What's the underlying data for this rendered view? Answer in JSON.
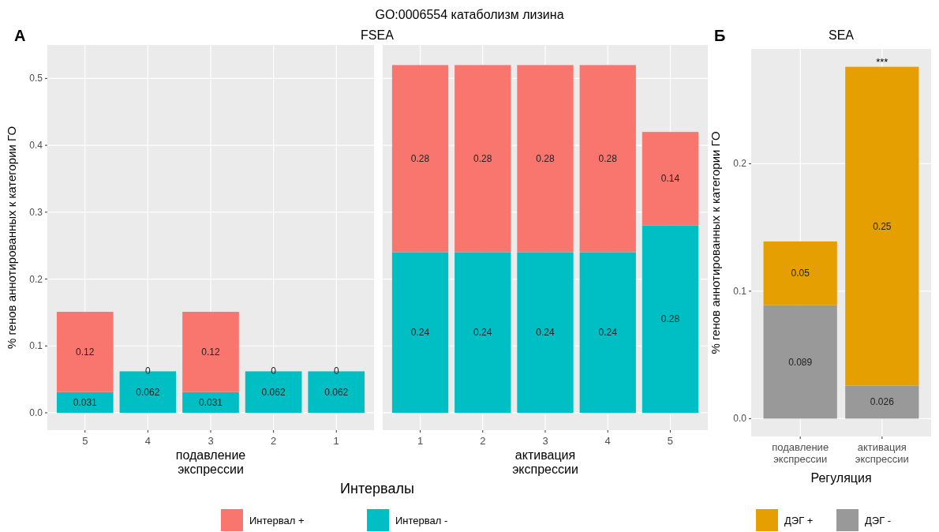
{
  "chart_data": [
    {
      "type": "bar",
      "stacked": true,
      "subtitle": "FSEA",
      "xlabel": "подавление экспрессии",
      "ylabel": "% генов аннотированных к категории ГО",
      "annotations": [
        "А",
        "Интервалы"
      ],
      "categories": [
        "5",
        "4",
        "3",
        "2",
        "1"
      ],
      "series": [
        {
          "name": "Интервал -",
          "color": "#00bfc4",
          "values": [
            0.031,
            0.062,
            0.031,
            0.062,
            0.062
          ]
        },
        {
          "name": "Интервал +",
          "color": "#f8766d",
          "values": [
            0.12,
            0,
            0.12,
            0,
            0
          ]
        }
      ],
      "ylim": [
        -0.026,
        0.55
      ],
      "yticks": [
        {
          "value": 0,
          "label": "0.0"
        },
        {
          "value": 0.1,
          "label": "0.1"
        },
        {
          "value": 0.2,
          "label": "0.2"
        },
        {
          "value": 0.3,
          "label": "0.3"
        },
        {
          "value": 0.4,
          "label": "0.4"
        },
        {
          "value": 0.5,
          "label": "0.5"
        }
      ],
      "grid": true,
      "legend": "bottom",
      "data_labels": true
    },
    {
      "type": "bar",
      "stacked": true,
      "title": "GO:0006554 катаболизм лизина",
      "xlabel": "активация экспрессии",
      "categories": [
        "1",
        "2",
        "3",
        "4",
        "5"
      ],
      "series": [
        {
          "color": "#00bfc4",
          "values": [
            0.24,
            0.24,
            0.24,
            0.24,
            0.28
          ]
        },
        {
          "color": "#f8766d",
          "values": [
            0.28,
            0.28,
            0.28,
            0.28,
            0.14
          ]
        }
      ],
      "ylim": [
        -0.026,
        0.55
      ],
      "yticks": [
        0,
        0.1,
        0.2,
        0.3,
        0.4,
        0.5
      ],
      "tick_labels": "x",
      "grid": true,
      "data_labels": true
    },
    {
      "type": "bar",
      "stacked": true,
      "title": "SEA",
      "xlabel": "Регуляция",
      "ylabel": "% генов аннотированных к категории ГО",
      "annotations": [
        "Б",
        {
          "text": "***",
          "x": "активация экспрессии",
          "y": 0.276
        }
      ],
      "categories": [
        "подавление экспрессии",
        "активация экспрессии"
      ],
      "series": [
        {
          "name": "ДЭГ -",
          "color": "#999999",
          "values": [
            0.089,
            0.026
          ]
        },
        {
          "name": "ДЭГ +",
          "color": "#e69f00",
          "values": [
            0.05,
            0.25
          ]
        }
      ],
      "ylim": [
        -0.014,
        0.29
      ],
      "yticks": [
        {
          "value": 0,
          "label": "0.0"
        },
        {
          "value": 0.1,
          "label": "0.1"
        },
        {
          "value": 0.2,
          "label": "0.2"
        }
      ],
      "grid": true,
      "legend": "bottom",
      "data_labels": true
    }
  ]
}
